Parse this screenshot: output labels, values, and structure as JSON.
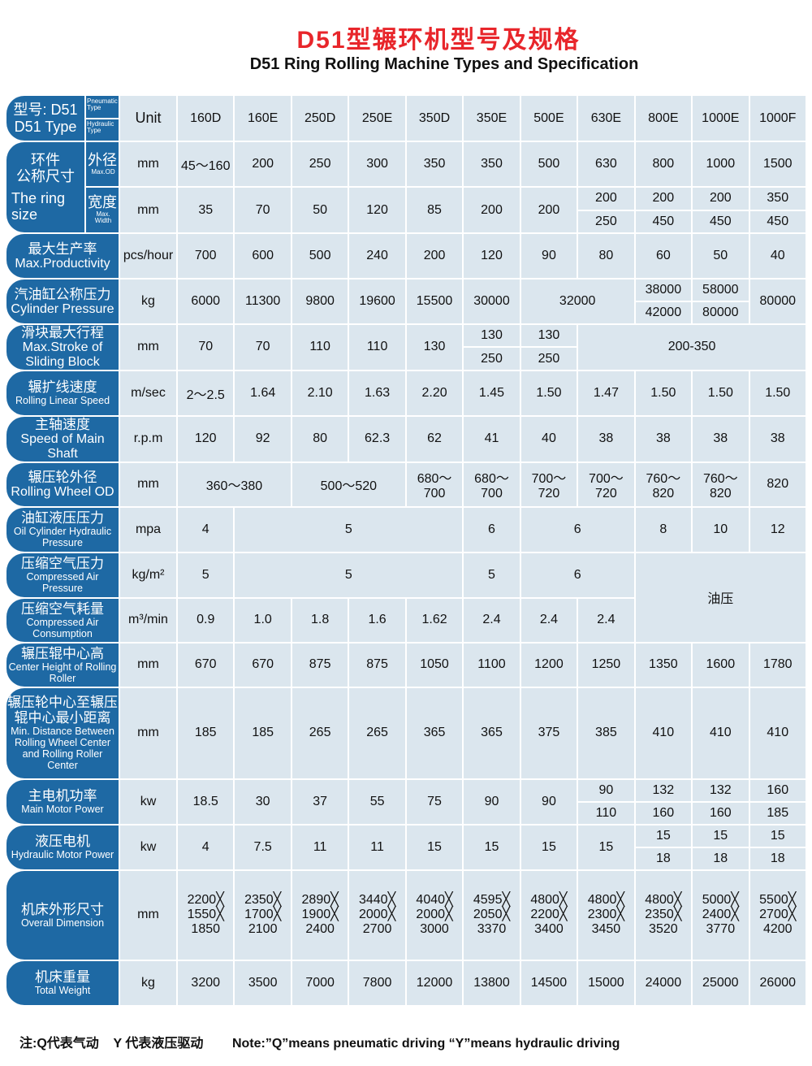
{
  "title": "D51型辗环机型号及规格",
  "subtitle": "D51 Ring Rolling Machine Types and Specification",
  "header": {
    "label_cn": "型号: D51",
    "label_en": "D51 Type",
    "pneumatic": "Pneumatic Type",
    "hydraulic": "Hydraulic Type",
    "unit": "Unit",
    "models": [
      "160D",
      "160E",
      "250D",
      "250E",
      "350D",
      "350E",
      "500E",
      "630E",
      "800E",
      "1000E",
      "1000F"
    ]
  },
  "colors": {
    "title": "#e8262b",
    "label_bg": "#1e69a4",
    "cell_bg": "#dbe6ee"
  },
  "rows": [
    {
      "h": 54,
      "group_cn": "环件\n公称尺寸",
      "group_en": "The ring size",
      "sub_cn": "外径",
      "sub_en": "Max.OD",
      "unit": "mm",
      "cells": [
        {
          "v": "45～160"
        },
        {
          "v": "200"
        },
        {
          "v": "250"
        },
        {
          "v": "300"
        },
        {
          "v": "350"
        },
        {
          "v": "350"
        },
        {
          "v": "500"
        },
        {
          "v": "630"
        },
        {
          "v": "800"
        },
        {
          "v": "1000"
        },
        {
          "v": "1500"
        }
      ]
    },
    {
      "h": 55,
      "sub_cn": "宽度",
      "sub_en": "Max. Width",
      "unit": "mm",
      "cells": [
        {
          "v": "35"
        },
        {
          "v": "70"
        },
        {
          "v": "50"
        },
        {
          "v": "120"
        },
        {
          "v": "85"
        },
        {
          "v": "200"
        },
        {
          "v": "200"
        },
        {
          "split": [
            "200",
            "250"
          ]
        },
        {
          "split": [
            "200",
            "450"
          ]
        },
        {
          "split": [
            "200",
            "450"
          ]
        },
        {
          "split": [
            "350",
            "450"
          ]
        }
      ]
    },
    {
      "h": 54,
      "cn": "最大生产率",
      "en": "Max.Productivity",
      "unit": "pcs/hour",
      "cells": [
        {
          "v": "700"
        },
        {
          "v": "600"
        },
        {
          "v": "500"
        },
        {
          "v": "240"
        },
        {
          "v": "200"
        },
        {
          "v": "120"
        },
        {
          "v": "90"
        },
        {
          "v": "80"
        },
        {
          "v": "60"
        },
        {
          "v": "50"
        },
        {
          "v": "40"
        }
      ]
    },
    {
      "h": 54,
      "cn": "汽油缸公称压力",
      "en": "Cylinder Pressure",
      "unit": "kg",
      "cells": [
        {
          "v": "6000"
        },
        {
          "v": "11300"
        },
        {
          "v": "9800"
        },
        {
          "v": "19600"
        },
        {
          "v": "15500"
        },
        {
          "v": "30000"
        },
        {
          "v": "32000",
          "span": 2
        },
        {
          "split": [
            "38000",
            "42000"
          ]
        },
        {
          "split": [
            "58000",
            "80000"
          ]
        },
        {
          "v": "80000"
        }
      ]
    },
    {
      "h": 54,
      "cn": "滑块最大行程",
      "en": "Max.Stroke of Sliding Block",
      "unit": "mm",
      "cells": [
        {
          "v": "70"
        },
        {
          "v": "70"
        },
        {
          "v": "110"
        },
        {
          "v": "110"
        },
        {
          "v": "130"
        },
        {
          "split": [
            "130",
            "250"
          ]
        },
        {
          "split": [
            "130",
            "250"
          ]
        },
        {
          "v": "200-350",
          "span": 4
        }
      ]
    },
    {
      "h": 54,
      "cn": "辗扩线速度",
      "en": "Rolling Linear Speed",
      "small": true,
      "unit": "m/sec",
      "cells": [
        {
          "v": "2～2.5"
        },
        {
          "v": "1.64"
        },
        {
          "v": "2.10"
        },
        {
          "v": "1.63"
        },
        {
          "v": "2.20"
        },
        {
          "v": "1.45"
        },
        {
          "v": "1.50"
        },
        {
          "v": "1.47"
        },
        {
          "v": "1.50"
        },
        {
          "v": "1.50"
        },
        {
          "v": "1.50"
        }
      ]
    },
    {
      "h": 54,
      "cn": "主轴速度",
      "en": "Speed of Main Shaft",
      "unit": "r.p.m",
      "cells": [
        {
          "v": "120"
        },
        {
          "v": "92"
        },
        {
          "v": "80"
        },
        {
          "v": "62.3"
        },
        {
          "v": "62"
        },
        {
          "v": "41"
        },
        {
          "v": "40"
        },
        {
          "v": "38"
        },
        {
          "v": "38"
        },
        {
          "v": "38"
        },
        {
          "v": "38"
        }
      ]
    },
    {
      "h": 53,
      "cn": "辗压轮外径",
      "en": "Rolling Wheel OD",
      "unit": "mm",
      "cells": [
        {
          "v": "360～380",
          "span": 2
        },
        {
          "v": "500～520",
          "span": 2
        },
        {
          "v": "680～700"
        },
        {
          "v": "680～700"
        },
        {
          "v": "700～720"
        },
        {
          "v": "700～720"
        },
        {
          "v": "760～820"
        },
        {
          "v": "760～820"
        },
        {
          "v": "820"
        }
      ]
    },
    {
      "h": 54,
      "cn": "油缸液压压力",
      "en": "Oil Cylinder Hydraulic Pressure",
      "small": true,
      "unit": "mpa",
      "cells": [
        {
          "v": "4"
        },
        {
          "v": "5",
          "span": 4
        },
        {
          "v": "6"
        },
        {
          "v": "6",
          "span": 2
        },
        {
          "v": "8"
        },
        {
          "v": "10"
        },
        {
          "v": "12"
        }
      ]
    },
    {
      "h": 54,
      "cn": "压缩空气压力",
      "en": "Compressed Air Pressure",
      "small": true,
      "unit": "kg/m²",
      "cells": [
        {
          "v": "5"
        },
        {
          "v": "5",
          "span": 4
        },
        {
          "v": "5"
        },
        {
          "v": "6",
          "span": 2
        },
        {
          "v": "油压",
          "span": 3,
          "rowspan": 2
        }
      ]
    },
    {
      "h": 53,
      "cn": "压缩空气耗量",
      "en": "Compressed Air Consumption",
      "small": true,
      "unit": "m³/min",
      "cells": [
        {
          "v": "0.9"
        },
        {
          "v": "1.0"
        },
        {
          "v": "1.8"
        },
        {
          "v": "1.6"
        },
        {
          "v": "1.62"
        },
        {
          "v": "2.4"
        },
        {
          "v": "2.4"
        },
        {
          "v": "2.4"
        }
      ]
    },
    {
      "h": 53,
      "cn": "辗压辊中心高",
      "en": "Center Height of Rolling Roller",
      "small": true,
      "unit": "mm",
      "cells": [
        {
          "v": "670"
        },
        {
          "v": "670"
        },
        {
          "v": "875"
        },
        {
          "v": "875"
        },
        {
          "v": "1050"
        },
        {
          "v": "1100"
        },
        {
          "v": "1200"
        },
        {
          "v": "1250"
        },
        {
          "v": "1350"
        },
        {
          "v": "1600"
        },
        {
          "v": "1780"
        }
      ]
    },
    {
      "h": 111,
      "cn": "辗压轮中心至辗压辊中心最小距离",
      "en": "Min. Distance Between Rolling Wheel Center and Rolling Roller Center",
      "small": true,
      "unit": "mm",
      "cells": [
        {
          "v": "185"
        },
        {
          "v": "185"
        },
        {
          "v": "265"
        },
        {
          "v": "265"
        },
        {
          "v": "365"
        },
        {
          "v": "365"
        },
        {
          "v": "375"
        },
        {
          "v": "385"
        },
        {
          "v": "410"
        },
        {
          "v": "410"
        },
        {
          "v": "410"
        }
      ]
    },
    {
      "h": 54,
      "cn": "主电机功率",
      "en": "Main Motor Power",
      "small": true,
      "unit": "kw",
      "cells": [
        {
          "v": "18.5"
        },
        {
          "v": "30"
        },
        {
          "v": "37"
        },
        {
          "v": "55"
        },
        {
          "v": "75"
        },
        {
          "v": "90"
        },
        {
          "v": "90"
        },
        {
          "split": [
            "90",
            "110"
          ]
        },
        {
          "split": [
            "132",
            "160"
          ]
        },
        {
          "split": [
            "132",
            "160"
          ]
        },
        {
          "split": [
            "160",
            "185"
          ]
        }
      ]
    },
    {
      "h": 54,
      "cn": "液压电机",
      "en": "Hydraulic Motor Power",
      "small": true,
      "unit": "kw",
      "cells": [
        {
          "v": "4"
        },
        {
          "v": "7.5"
        },
        {
          "v": "11"
        },
        {
          "v": "11"
        },
        {
          "v": "15"
        },
        {
          "v": "15"
        },
        {
          "v": "15"
        },
        {
          "v": "15"
        },
        {
          "split": [
            "15",
            "18"
          ]
        },
        {
          "split": [
            "15",
            "18"
          ]
        },
        {
          "split": [
            "15",
            "18"
          ]
        }
      ]
    },
    {
      "h": 109,
      "cn": "机床外形尺寸",
      "en": "Overall Dimension",
      "small": true,
      "unit": "mm",
      "cells": [
        {
          "dim": [
            "2200╳",
            "1550╳",
            "1850"
          ]
        },
        {
          "dim": [
            "2350╳",
            "1700╳",
            "2100"
          ]
        },
        {
          "dim": [
            "2890╳",
            "1900╳",
            "2400"
          ]
        },
        {
          "dim": [
            "3440╳",
            "2000╳",
            "2700"
          ]
        },
        {
          "dim": [
            "4040╳",
            "2000╳",
            "3000"
          ]
        },
        {
          "dim": [
            "4595╳",
            "2050╳",
            "3370"
          ]
        },
        {
          "dim": [
            "4800╳",
            "2200╳",
            "3400"
          ]
        },
        {
          "dim": [
            "4800╳",
            "2300╳",
            "3450"
          ]
        },
        {
          "dim": [
            "4800╳",
            "2350╳",
            "3520"
          ]
        },
        {
          "dim": [
            "5000╳",
            "2400╳",
            "3770"
          ]
        },
        {
          "dim": [
            "5500╳",
            "2700╳",
            "4200"
          ]
        }
      ]
    },
    {
      "h": 54,
      "cn": "机床重量",
      "en": "Total Weight",
      "small": true,
      "unit": "kg",
      "cells": [
        {
          "v": "3200"
        },
        {
          "v": "3500"
        },
        {
          "v": "7000"
        },
        {
          "v": "7800"
        },
        {
          "v": "12000"
        },
        {
          "v": "13800"
        },
        {
          "v": "14500"
        },
        {
          "v": "15000"
        },
        {
          "v": "24000"
        },
        {
          "v": "25000"
        },
        {
          "v": "26000"
        }
      ]
    }
  ],
  "note": "注:Q代表气动    Y 代表液压驱动        Note:”Q”means pneumatic driving “Y”means hydraulic driving"
}
